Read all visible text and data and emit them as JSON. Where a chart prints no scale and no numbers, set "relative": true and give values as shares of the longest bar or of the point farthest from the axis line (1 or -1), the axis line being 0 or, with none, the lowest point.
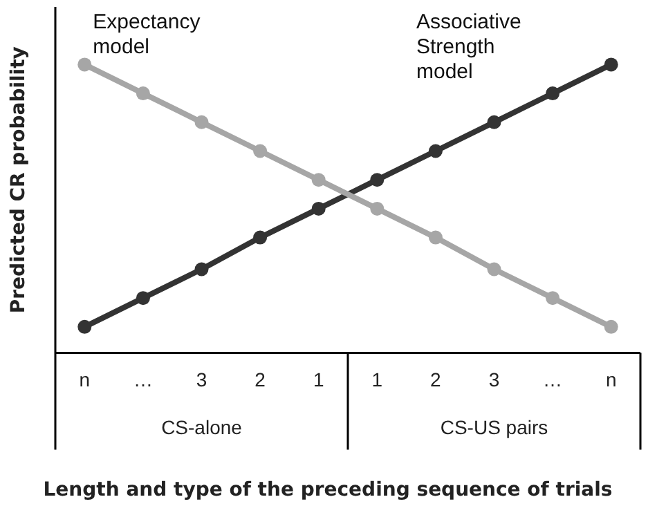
{
  "chart_data": {
    "type": "line",
    "relative": true,
    "ylabel": "Predicted CR probability",
    "xlabel": "Length and type of the preceding sequence of trials",
    "categories": [
      "n",
      "…",
      "3",
      "2",
      "1",
      "1",
      "2",
      "3",
      "…",
      "n"
    ],
    "series": [
      {
        "name": "Expectancy model",
        "color": "#a6a6a6",
        "values": [
          1,
          0.9,
          0.8,
          0.7,
          0.6,
          0.5,
          0.4,
          0.29,
          0.19,
          0.09
        ]
      },
      {
        "name": "Associative Strength model",
        "color": "#333333",
        "values": [
          0.09,
          0.19,
          0.29,
          0.4,
          0.5,
          0.6,
          0.7,
          0.8,
          0.9,
          1
        ]
      }
    ],
    "annotations": [
      "CS-alone",
      "CS-US pairs"
    ],
    "marker": "circle",
    "line_style": "solid",
    "legend": false,
    "grid": false
  }
}
